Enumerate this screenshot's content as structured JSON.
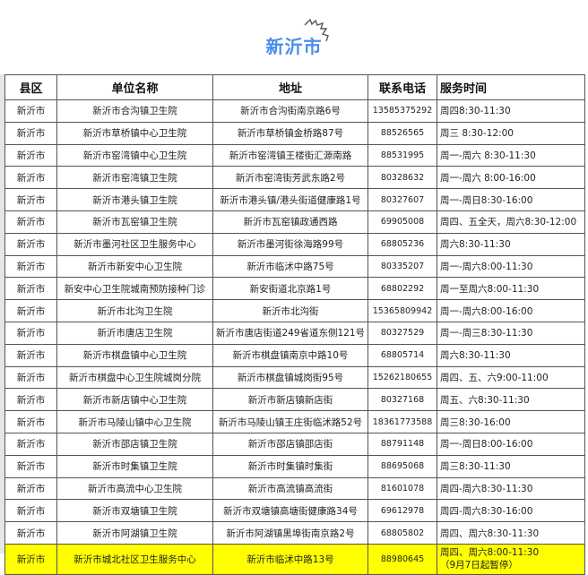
{
  "title": "新沂市",
  "highlight_color": "#ffff00",
  "title_color": "#4a8ee8",
  "table": {
    "headers": [
      "县区",
      "单位名称",
      "地址",
      "联系电话",
      "服务时间"
    ],
    "rows": [
      [
        "新沂市",
        "新沂市合沟镇卫生院",
        "新沂市合沟街南京路6号",
        "13585375292",
        "周四8:30-11:30"
      ],
      [
        "新沂市",
        "新沂市草桥镇中心卫生院",
        "新沂市草桥镇金桥路87号",
        "88526565",
        "周三 8:30-12:00"
      ],
      [
        "新沂市",
        "新沂市窑湾镇中心卫生院",
        "新沂市窑湾镇王楼街汇源南路",
        "88531995",
        "周一-周六 8:30-11:30"
      ],
      [
        "新沂市",
        "新沂市窑湾镇卫生院",
        "新沂市窑湾街芳武东路2号",
        "80328632",
        "周一-周六 8:00-16:00"
      ],
      [
        "新沂市",
        "新沂市港头镇卫生院",
        "新沂市港头镇/港头街道健康路1号",
        "80327607",
        "周一-周日8:30-16:00"
      ],
      [
        "新沂市",
        "新沂市瓦窑镇卫生院",
        "新沂市瓦窑镇政通西路",
        "69905008",
        "周四、五全天，周六8:30-12:00"
      ],
      [
        "新沂市",
        "新沂市墨河社区卫生服务中心",
        "新沂市墨河街徐海路99号",
        "68805236",
        "周六8:30-11:30"
      ],
      [
        "新沂市",
        "新沂市新安中心卫生院",
        "新沂市临沭中路75号",
        "80335207",
        "周一-周六8:00-11:30"
      ],
      [
        "新沂市",
        "新安中心卫生院城南预防接种门诊",
        "新安街道北京路1号",
        "68802292",
        "周一至周六8:00-11:30"
      ],
      [
        "新沂市",
        "新沂市北沟卫生院",
        "新沂市北沟街",
        "15365809942",
        "周一-周六8:00-16:00"
      ],
      [
        "新沂市",
        "新沂市唐店卫生院",
        "新沂市唐店街道249省道东侧121号",
        "80327529",
        "周一-周三8:30-11:30"
      ],
      [
        "新沂市",
        "新沂市棋盘镇中心卫生院",
        "新沂市棋盘镇南京中路10号",
        "68805714",
        "周六8:30-11:30"
      ],
      [
        "新沂市",
        "新沂市棋盘中心卫生院城岗分院",
        "新沂市棋盘镇城岗街95号",
        "15262180655",
        "周四、五、六9:00-11:00"
      ],
      [
        "新沂市",
        "新沂市新店镇中心卫生院",
        "新沂市新店镇新店街",
        "80327168",
        "周五、六8:30-11:30"
      ],
      [
        "新沂市",
        "新沂市马陵山镇中心卫生院",
        "新沂市马陵山镇王庄街临沭路52号",
        "18361773588",
        "周三8:30-16:00"
      ],
      [
        "新沂市",
        "新沂市邵店镇卫生院",
        "新沂市邵店镇邵店街",
        "88791148",
        "周一-周日8:00-16:00"
      ],
      [
        "新沂市",
        "新沂市时集镇卫生院",
        "新沂市时集镇时集街",
        "88695068",
        "周三8:30-11:30"
      ],
      [
        "新沂市",
        "新沂市高流中心卫生院",
        "新沂市高流镇高流街",
        "81601078",
        "周四-周六8:30-11:30"
      ],
      [
        "新沂市",
        "新沂市双塘镇卫生院",
        "新沂市双塘镇高塘街健康路34号",
        "69612978",
        "周四-周六8:30-16:00"
      ],
      [
        "新沂市",
        "新沂市阿湖镇卫生院",
        "新沂市阿湖镇黑埠街南京路2号",
        "68805802",
        "周四、周六8:30-11:30"
      ]
    ],
    "highlighted_row": {
      "county": "新沂市",
      "name": "新沂市城北社区卫生服务中心",
      "address": "新沂市临沭中路13号",
      "phone": "88980645",
      "time_line1": "周四、周六8:00-11:30",
      "time_line2": "（9月7日起暂停）"
    }
  }
}
